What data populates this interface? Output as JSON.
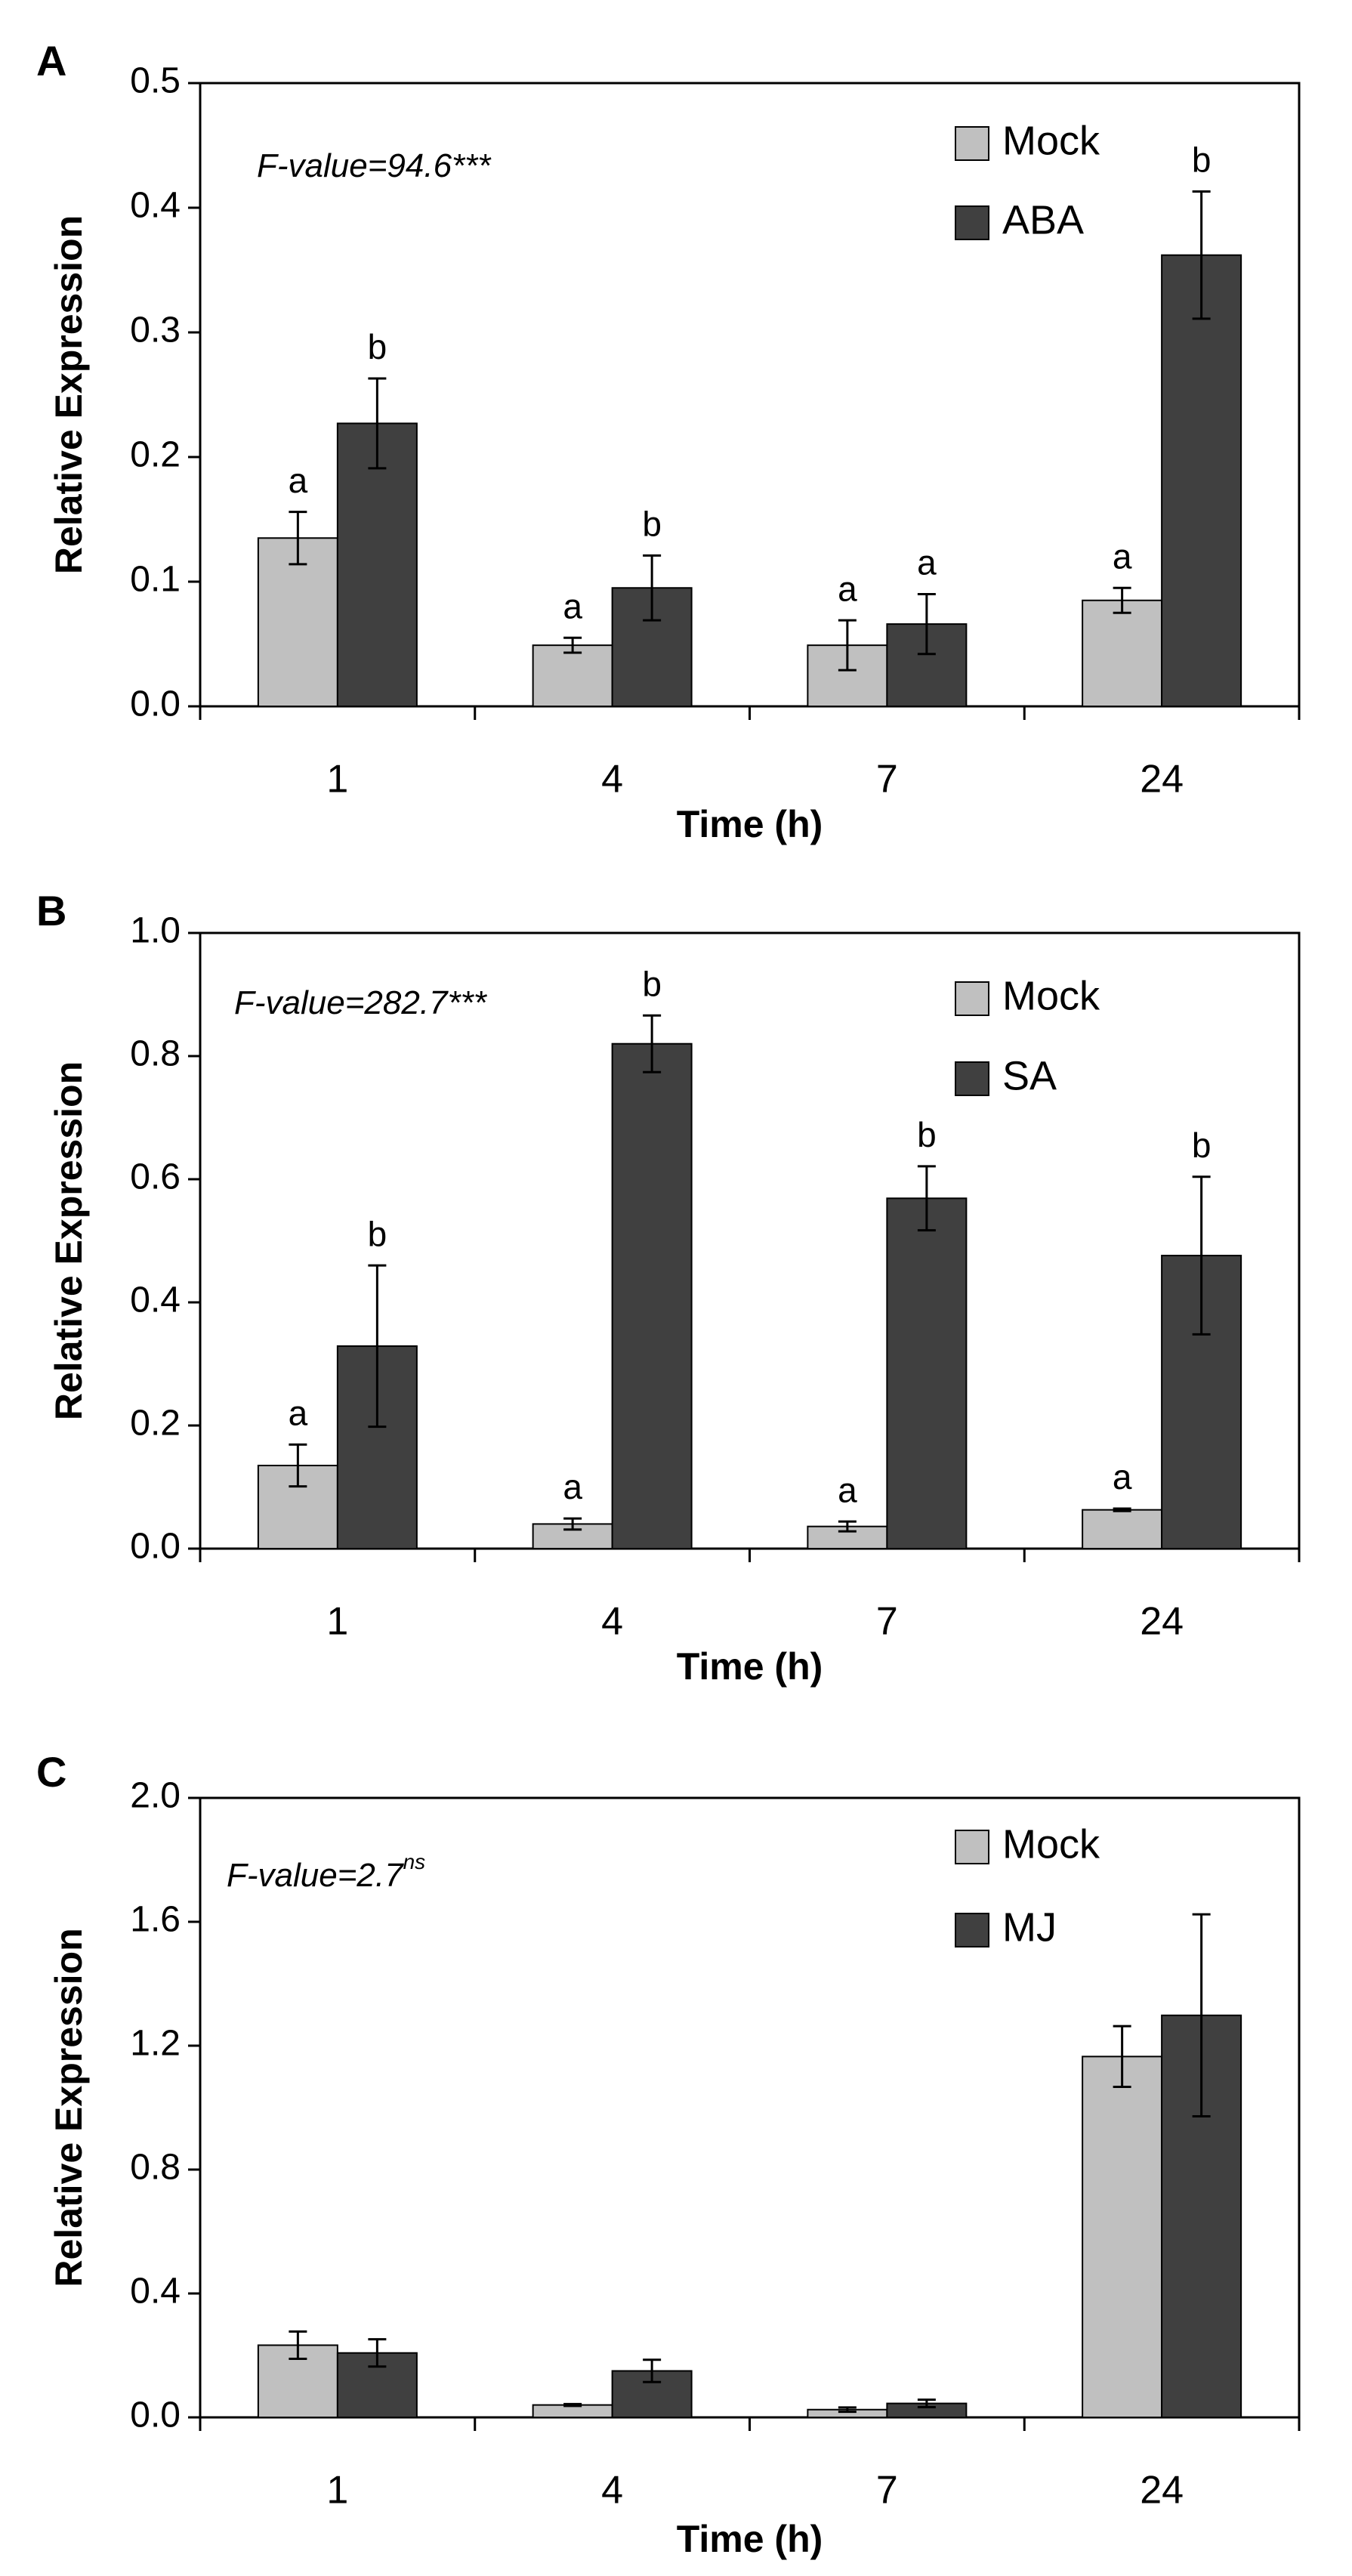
{
  "chart_data": [
    {
      "panel": "A",
      "type": "bar",
      "annotation": "F-value=94.6***",
      "xlabel": "Time (h)",
      "ylabel": "Relative Expression",
      "ylim": [
        0,
        0.5
      ],
      "yticks": [
        "0.0",
        "0.1",
        "0.2",
        "0.3",
        "0.4",
        "0.5"
      ],
      "categories": [
        "1",
        "4",
        "7",
        "24"
      ],
      "legend_position": "top-right",
      "series": [
        {
          "name": "Mock",
          "color": "#c0c0c0",
          "values": [
            0.135,
            0.049,
            0.049,
            0.085
          ],
          "errors": [
            0.021,
            0.006,
            0.02,
            0.01
          ],
          "letters": [
            "a",
            "a",
            "a",
            "a"
          ]
        },
        {
          "name": "ABA",
          "color": "#404040",
          "values": [
            0.227,
            0.095,
            0.066,
            0.362
          ],
          "errors": [
            0.036,
            0.026,
            0.024,
            0.051
          ],
          "letters": [
            "b",
            "b",
            "a",
            "b"
          ]
        }
      ]
    },
    {
      "panel": "B",
      "type": "bar",
      "annotation": "F-value=282.7***",
      "xlabel": "Time (h)",
      "ylabel": "Relative Expression",
      "ylim": [
        0,
        1.0
      ],
      "yticks": [
        "0.0",
        "0.2",
        "0.4",
        "0.6",
        "0.8",
        "1.0"
      ],
      "categories": [
        "1",
        "4",
        "7",
        "24"
      ],
      "legend_position": "top-right",
      "series": [
        {
          "name": "Mock",
          "color": "#c0c0c0",
          "values": [
            0.135,
            0.04,
            0.036,
            0.063
          ],
          "errors": [
            0.034,
            0.009,
            0.008,
            0.002
          ],
          "letters": [
            "a",
            "a",
            "a",
            "a"
          ]
        },
        {
          "name": "SA",
          "color": "#404040",
          "values": [
            0.329,
            0.82,
            0.569,
            0.476
          ],
          "errors": [
            0.131,
            0.046,
            0.052,
            0.128
          ],
          "letters": [
            "b",
            "b",
            "b",
            "b"
          ]
        }
      ]
    },
    {
      "panel": "C",
      "type": "bar",
      "annotation": "F-value=2.7",
      "annotation_sup": "ns",
      "xlabel": "Time (h)",
      "ylabel": "Relative Expression",
      "ylim": [
        0,
        2.0
      ],
      "yticks": [
        "0.0",
        "0.4",
        "0.8",
        "1.2",
        "1.6",
        "2.0"
      ],
      "categories": [
        "1",
        "4",
        "7",
        "24"
      ],
      "legend_position": "top-right",
      "series": [
        {
          "name": "Mock",
          "color": "#c0c0c0",
          "values": [
            0.233,
            0.04,
            0.025,
            1.165
          ],
          "errors": [
            0.044,
            0.003,
            0.007,
            0.098
          ],
          "letters": [
            "",
            "",
            "",
            ""
          ]
        },
        {
          "name": "MJ",
          "color": "#404040",
          "values": [
            0.208,
            0.15,
            0.045,
            1.298
          ],
          "errors": [
            0.044,
            0.036,
            0.012,
            0.326
          ],
          "letters": [
            "",
            "",
            "",
            ""
          ]
        }
      ]
    }
  ]
}
